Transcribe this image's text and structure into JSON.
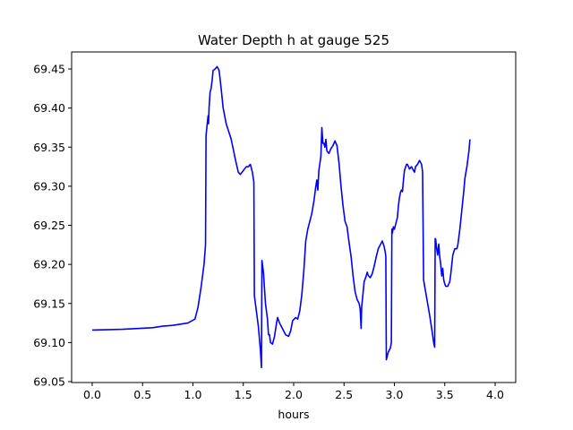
{
  "chart_data": {
    "type": "line",
    "title": "Water Depth h at gauge 525",
    "xlabel": "hours",
    "ylabel": "",
    "xlim": [
      -0.2,
      4.2
    ],
    "ylim": [
      69.05,
      69.465
    ],
    "xticks": [
      0.0,
      0.5,
      1.0,
      1.5,
      2.0,
      2.5,
      3.0,
      3.5,
      4.0
    ],
    "xtick_labels": [
      "0.0",
      "0.5",
      "1.0",
      "1.5",
      "2.0",
      "2.5",
      "3.0",
      "3.5",
      "4.0"
    ],
    "yticks": [
      69.05,
      69.1,
      69.15,
      69.2,
      69.25,
      69.3,
      69.35,
      69.4,
      69.45
    ],
    "ytick_labels": [
      "69.05",
      "69.10",
      "69.15",
      "69.20",
      "69.25",
      "69.30",
      "69.35",
      "69.40",
      "69.45"
    ],
    "grid": false,
    "series": [
      {
        "color": "#0000ff",
        "points": [
          [
            0.0,
            69.116
          ],
          [
            0.3,
            69.117
          ],
          [
            0.6,
            69.119
          ],
          [
            0.7,
            69.121
          ],
          [
            0.8,
            69.122
          ],
          [
            0.95,
            69.125
          ],
          [
            1.02,
            69.13
          ],
          [
            1.05,
            69.145
          ],
          [
            1.08,
            69.17
          ],
          [
            1.11,
            69.2
          ],
          [
            1.125,
            69.225
          ],
          [
            1.13,
            69.365
          ],
          [
            1.15,
            69.39
          ],
          [
            1.155,
            69.38
          ],
          [
            1.16,
            69.4
          ],
          [
            1.17,
            69.42
          ],
          [
            1.18,
            69.425
          ],
          [
            1.19,
            69.435
          ],
          [
            1.2,
            69.448
          ],
          [
            1.22,
            69.45
          ],
          [
            1.24,
            69.453
          ],
          [
            1.26,
            69.448
          ],
          [
            1.28,
            69.425
          ],
          [
            1.3,
            69.4
          ],
          [
            1.33,
            69.38
          ],
          [
            1.38,
            69.36
          ],
          [
            1.42,
            69.335
          ],
          [
            1.45,
            69.318
          ],
          [
            1.47,
            69.315
          ],
          [
            1.5,
            69.32
          ],
          [
            1.53,
            69.325
          ],
          [
            1.55,
            69.325
          ],
          [
            1.57,
            69.328
          ],
          [
            1.59,
            69.318
          ],
          [
            1.605,
            69.305
          ],
          [
            1.61,
            69.16
          ],
          [
            1.65,
            69.12
          ],
          [
            1.67,
            69.09
          ],
          [
            1.68,
            69.068
          ],
          [
            1.685,
            69.205
          ],
          [
            1.7,
            69.19
          ],
          [
            1.72,
            69.15
          ],
          [
            1.74,
            69.13
          ],
          [
            1.75,
            69.11
          ],
          [
            1.76,
            69.11
          ],
          [
            1.77,
            69.1
          ],
          [
            1.79,
            69.098
          ],
          [
            1.81,
            69.108
          ],
          [
            1.83,
            69.125
          ],
          [
            1.84,
            69.132
          ],
          [
            1.86,
            69.125
          ],
          [
            1.88,
            69.12
          ],
          [
            1.9,
            69.115
          ],
          [
            1.92,
            69.11
          ],
          [
            1.95,
            69.108
          ],
          [
            1.97,
            69.115
          ],
          [
            1.99,
            69.128
          ],
          [
            2.02,
            69.132
          ],
          [
            2.04,
            69.13
          ],
          [
            2.06,
            69.14
          ],
          [
            2.08,
            69.16
          ],
          [
            2.1,
            69.19
          ],
          [
            2.12,
            69.23
          ],
          [
            2.14,
            69.245
          ],
          [
            2.16,
            69.255
          ],
          [
            2.18,
            69.265
          ],
          [
            2.2,
            69.28
          ],
          [
            2.22,
            69.3
          ],
          [
            2.23,
            69.308
          ],
          [
            2.24,
            69.295
          ],
          [
            2.25,
            69.32
          ],
          [
            2.27,
            69.338
          ],
          [
            2.28,
            69.375
          ],
          [
            2.29,
            69.355
          ],
          [
            2.3,
            69.355
          ],
          [
            2.31,
            69.35
          ],
          [
            2.32,
            69.36
          ],
          [
            2.33,
            69.345
          ],
          [
            2.35,
            69.342
          ],
          [
            2.37,
            69.348
          ],
          [
            2.39,
            69.352
          ],
          [
            2.41,
            69.358
          ],
          [
            2.43,
            69.352
          ],
          [
            2.45,
            69.33
          ],
          [
            2.47,
            69.3
          ],
          [
            2.49,
            69.275
          ],
          [
            2.51,
            69.255
          ],
          [
            2.53,
            69.248
          ],
          [
            2.55,
            69.228
          ],
          [
            2.57,
            69.21
          ],
          [
            2.59,
            69.185
          ],
          [
            2.61,
            69.165
          ],
          [
            2.63,
            69.155
          ],
          [
            2.65,
            69.15
          ],
          [
            2.66,
            69.143
          ],
          [
            2.67,
            69.118
          ],
          [
            2.675,
            69.145
          ],
          [
            2.69,
            69.165
          ],
          [
            2.7,
            69.178
          ],
          [
            2.72,
            69.185
          ],
          [
            2.73,
            69.19
          ],
          [
            2.74,
            69.186
          ],
          [
            2.76,
            69.183
          ],
          [
            2.78,
            69.188
          ],
          [
            2.8,
            69.198
          ],
          [
            2.82,
            69.21
          ],
          [
            2.84,
            69.22
          ],
          [
            2.86,
            69.225
          ],
          [
            2.88,
            69.23
          ],
          [
            2.9,
            69.222
          ],
          [
            2.91,
            69.215
          ],
          [
            2.915,
            69.21
          ],
          [
            2.92,
            69.078
          ],
          [
            2.94,
            69.088
          ],
          [
            2.96,
            69.093
          ],
          [
            2.97,
            69.1
          ],
          [
            2.975,
            69.245
          ],
          [
            2.98,
            69.24
          ],
          [
            2.99,
            69.248
          ],
          [
            3.0,
            69.245
          ],
          [
            3.02,
            69.255
          ],
          [
            3.03,
            69.26
          ],
          [
            3.04,
            69.275
          ],
          [
            3.05,
            69.285
          ],
          [
            3.06,
            69.292
          ],
          [
            3.07,
            69.295
          ],
          [
            3.08,
            69.293
          ],
          [
            3.09,
            69.308
          ],
          [
            3.1,
            69.32
          ],
          [
            3.12,
            69.328
          ],
          [
            3.13,
            69.328
          ],
          [
            3.15,
            69.322
          ],
          [
            3.17,
            69.325
          ],
          [
            3.19,
            69.32
          ],
          [
            3.2,
            69.318
          ],
          [
            3.21,
            69.325
          ],
          [
            3.23,
            69.328
          ],
          [
            3.25,
            69.333
          ],
          [
            3.27,
            69.328
          ],
          [
            3.28,
            69.318
          ],
          [
            3.29,
            69.18
          ],
          [
            3.31,
            69.165
          ],
          [
            3.33,
            69.15
          ],
          [
            3.35,
            69.135
          ],
          [
            3.37,
            69.118
          ],
          [
            3.39,
            69.1
          ],
          [
            3.4,
            69.094
          ],
          [
            3.405,
            69.233
          ],
          [
            3.41,
            69.232
          ],
          [
            3.42,
            69.22
          ],
          [
            3.43,
            69.212
          ],
          [
            3.44,
            69.226
          ],
          [
            3.45,
            69.21
          ],
          [
            3.46,
            69.2
          ],
          [
            3.47,
            69.185
          ],
          [
            3.48,
            69.195
          ],
          [
            3.49,
            69.18
          ],
          [
            3.5,
            69.175
          ],
          [
            3.51,
            69.172
          ],
          [
            3.53,
            69.172
          ],
          [
            3.55,
            69.178
          ],
          [
            3.56,
            69.188
          ],
          [
            3.57,
            69.2
          ],
          [
            3.58,
            69.212
          ],
          [
            3.6,
            69.22
          ],
          [
            3.62,
            69.22
          ],
          [
            3.63,
            69.225
          ],
          [
            3.65,
            69.245
          ],
          [
            3.67,
            69.27
          ],
          [
            3.69,
            69.295
          ],
          [
            3.7,
            69.31
          ],
          [
            3.72,
            69.325
          ],
          [
            3.74,
            69.345
          ],
          [
            3.75,
            69.36
          ]
        ],
        "x_scale_note": ""
      }
    ]
  }
}
